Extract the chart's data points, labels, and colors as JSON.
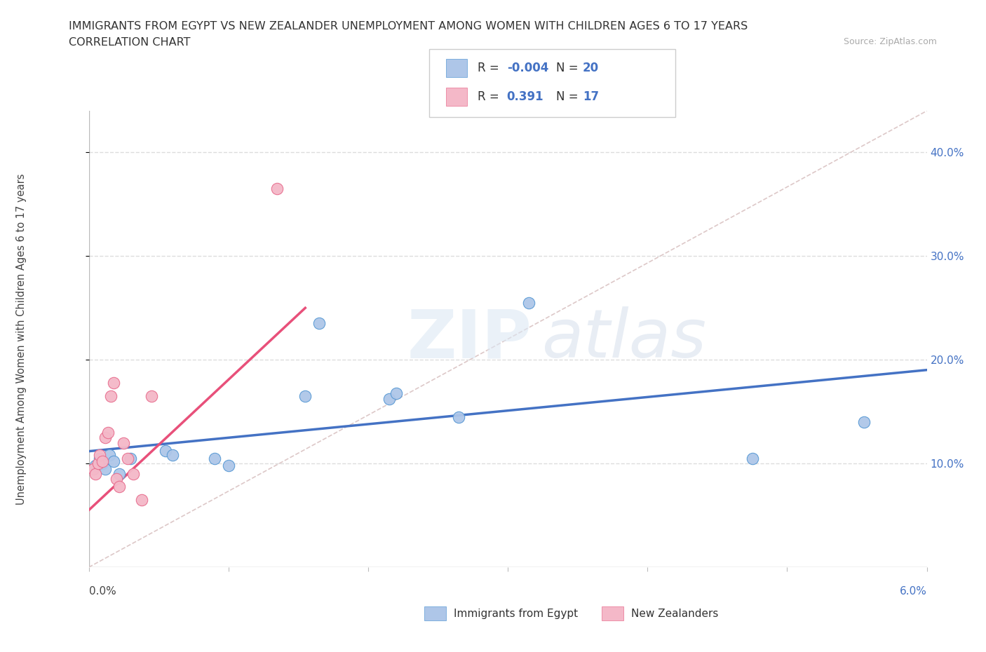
{
  "title_line1": "IMMIGRANTS FROM EGYPT VS NEW ZEALANDER UNEMPLOYMENT AMONG WOMEN WITH CHILDREN AGES 6 TO 17 YEARS",
  "title_line2": "CORRELATION CHART",
  "source": "Source: ZipAtlas.com",
  "ylabel": "Unemployment Among Women with Children Ages 6 to 17 years",
  "xlim": [
    0.0,
    6.0
  ],
  "ylim": [
    0.0,
    44.0
  ],
  "ytick_values": [
    10,
    20,
    30,
    40
  ],
  "grid_color": "#dddddd",
  "egypt_color": "#aec6e8",
  "egypt_edge_color": "#5b9bd5",
  "nz_color": "#f4b8c8",
  "nz_edge_color": "#e87090",
  "trendline_egypt_color": "#4472c4",
  "trendline_nz_color": "#e8507a",
  "diag_color": "#ddbbbb",
  "bg_color": "#ffffff",
  "egypt_scatter_x": [
    0.05,
    0.08,
    0.1,
    0.12,
    0.15,
    0.18,
    0.22,
    0.3,
    0.55,
    0.6,
    0.9,
    1.0,
    1.55,
    1.65,
    2.15,
    2.2,
    2.65,
    3.15,
    4.75,
    5.55
  ],
  "egypt_scatter_y": [
    9.8,
    10.5,
    10.0,
    9.5,
    10.8,
    10.2,
    9.0,
    10.5,
    11.2,
    10.8,
    10.5,
    9.8,
    16.5,
    23.5,
    16.2,
    16.8,
    14.5,
    25.5,
    10.5,
    14.0
  ],
  "nz_scatter_x": [
    0.03,
    0.05,
    0.07,
    0.08,
    0.1,
    0.12,
    0.14,
    0.16,
    0.18,
    0.2,
    0.22,
    0.25,
    0.28,
    0.32,
    0.38,
    0.45,
    1.35
  ],
  "nz_scatter_y": [
    9.5,
    9.0,
    10.0,
    10.8,
    10.2,
    12.5,
    13.0,
    16.5,
    17.8,
    8.5,
    7.8,
    12.0,
    10.5,
    9.0,
    6.5,
    16.5,
    36.5
  ],
  "nz_trendline_x0": 0.0,
  "nz_trendline_y0": 5.5,
  "nz_trendline_x1": 1.55,
  "nz_trendline_y1": 25.0
}
